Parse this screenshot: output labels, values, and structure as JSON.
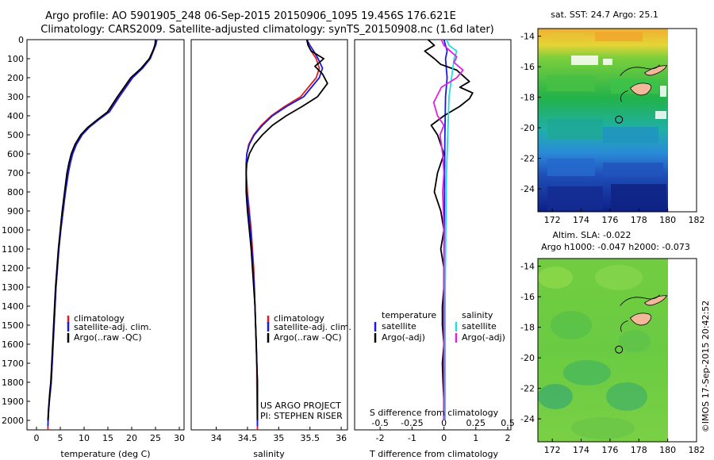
{
  "header": {
    "line1": "Argo profile: AO 5901905_248 06-Sep-2015 20150906_1095 19.456S 176.621E",
    "line2": "Climatology: CARS2009. Satellite-adjusted climatology: synTS_20150908.nc (1.6d later)"
  },
  "colors": {
    "climatology": "#e0201b",
    "satellite": "#1a1ae6",
    "argo": "#000000",
    "satellite_s": "#22dddd",
    "argo_s": "#dd22dd"
  },
  "chart_data": [
    {
      "type": "line",
      "xlabel": "temperature (deg C)",
      "ylabel": "",
      "xlim": [
        -2,
        31
      ],
      "ylim": [
        2050,
        0
      ],
      "xticks": [
        0,
        5,
        10,
        15,
        20,
        25,
        30
      ],
      "yticks": [
        0,
        100,
        200,
        300,
        400,
        500,
        600,
        700,
        800,
        900,
        1000,
        1100,
        1200,
        1300,
        1400,
        1500,
        1600,
        1700,
        1800,
        1900,
        2000
      ],
      "legend": [
        "climatology",
        "satellite-adj. clim.",
        "Argo(..raw -QC)"
      ],
      "series": [
        {
          "name": "climatology",
          "color": "#e0201b",
          "x": [
            25.2,
            25.0,
            24.6,
            23.8,
            22.2,
            20.0,
            17.3,
            15.2,
            13.0,
            11.0,
            9.5,
            8.3,
            7.5,
            7.0,
            6.6,
            6.0,
            5.6,
            5.1,
            4.7,
            4.4,
            4.1,
            3.9,
            3.7,
            3.5,
            3.3,
            3.1,
            2.9,
            2.7,
            2.55,
            2.45,
            2.4,
            2.4
          ],
          "y": [
            0,
            25,
            50,
            100,
            150,
            200,
            300,
            380,
            420,
            460,
            500,
            550,
            600,
            650,
            700,
            800,
            900,
            1000,
            1100,
            1200,
            1300,
            1400,
            1500,
            1600,
            1700,
            1800,
            1850,
            1900,
            1950,
            2000,
            2030,
            2050
          ]
        },
        {
          "name": "satellite-adj. clim.",
          "color": "#1a1ae6",
          "x": [
            25.3,
            25.1,
            24.7,
            23.9,
            22.3,
            20.2,
            17.4,
            15.3,
            13.1,
            11.1,
            9.6,
            8.4,
            7.6,
            7.1,
            6.7,
            6.1,
            5.6,
            5.1,
            4.7,
            4.4,
            4.1,
            3.9,
            3.7,
            3.5,
            3.3,
            3.1,
            2.9,
            2.7,
            2.55,
            2.45,
            2.4
          ],
          "y": [
            0,
            25,
            50,
            100,
            150,
            200,
            300,
            380,
            420,
            460,
            500,
            550,
            600,
            650,
            700,
            800,
            900,
            1000,
            1100,
            1200,
            1300,
            1400,
            1500,
            1600,
            1700,
            1800,
            1850,
            1900,
            1950,
            2000,
            2030
          ]
        },
        {
          "name": "Argo(..raw -QC)",
          "color": "#000000",
          "x": [
            25.0,
            24.9,
            24.6,
            23.7,
            22.0,
            19.8,
            17.0,
            14.9,
            12.8,
            10.8,
            9.3,
            8.1,
            7.3,
            6.8,
            6.4,
            5.9,
            5.4,
            5.0,
            4.6,
            4.3,
            4.0,
            3.8,
            3.6,
            3.4,
            3.2,
            3.0,
            2.8,
            2.65,
            2.5,
            2.4
          ],
          "y": [
            0,
            25,
            50,
            100,
            150,
            200,
            300,
            380,
            420,
            460,
            500,
            550,
            600,
            650,
            700,
            800,
            900,
            1000,
            1100,
            1200,
            1300,
            1400,
            1500,
            1600,
            1700,
            1800,
            1850,
            1900,
            1950,
            2000
          ]
        }
      ]
    },
    {
      "type": "line",
      "xlabel": "salinity",
      "ylabel": "",
      "xlim": [
        33.6,
        36.1
      ],
      "ylim": [
        2050,
        0
      ],
      "xticks": [
        34,
        34.5,
        35,
        35.5,
        36
      ],
      "yticks": [],
      "legend": [
        "climatology",
        "satellite-adj. clim.",
        "Argo(..raw -QC)"
      ],
      "annotations": [
        "US ARGO PROJECT",
        "PI: STEPHEN RISER"
      ],
      "series": [
        {
          "name": "climatology",
          "color": "#e0201b",
          "x": [
            35.45,
            35.47,
            35.52,
            35.6,
            35.65,
            35.6,
            35.35,
            35.1,
            34.88,
            34.72,
            34.6,
            34.52,
            34.49,
            34.48,
            34.48,
            34.5,
            34.53,
            34.56,
            34.58,
            34.6,
            34.61,
            34.62,
            34.63,
            34.64,
            34.65,
            34.65,
            34.66
          ],
          "y": [
            0,
            30,
            60,
            100,
            150,
            200,
            300,
            350,
            400,
            450,
            500,
            550,
            600,
            650,
            700,
            800,
            900,
            1000,
            1100,
            1200,
            1300,
            1400,
            1500,
            1600,
            1700,
            1800,
            2050
          ]
        },
        {
          "name": "satellite-adj. clim.",
          "color": "#1a1ae6",
          "x": [
            35.45,
            35.5,
            35.56,
            35.63,
            35.7,
            35.65,
            35.4,
            35.13,
            34.9,
            34.74,
            34.61,
            34.53,
            34.49,
            34.48,
            34.48,
            34.49,
            34.52,
            34.55,
            34.57,
            34.59,
            34.61,
            34.62,
            34.63,
            34.64,
            34.65,
            34.66,
            34.66
          ],
          "y": [
            0,
            30,
            60,
            100,
            150,
            200,
            300,
            350,
            400,
            450,
            500,
            550,
            600,
            650,
            700,
            800,
            900,
            1000,
            1100,
            1200,
            1300,
            1400,
            1500,
            1600,
            1700,
            1800,
            2030
          ]
        },
        {
          "name": "Argo(..raw -QC)",
          "color": "#000000",
          "x": [
            35.45,
            35.47,
            35.52,
            35.72,
            35.58,
            35.7,
            35.78,
            35.62,
            35.38,
            35.12,
            34.9,
            34.74,
            34.61,
            34.53,
            34.49,
            34.48,
            34.48,
            34.5,
            34.53,
            34.56,
            34.58,
            34.6,
            34.62,
            34.63,
            34.64,
            34.65,
            34.66,
            34.66
          ],
          "y": [
            0,
            30,
            60,
            100,
            140,
            180,
            230,
            300,
            350,
            400,
            450,
            500,
            550,
            600,
            650,
            700,
            800,
            900,
            1000,
            1100,
            1200,
            1300,
            1400,
            1500,
            1600,
            1700,
            1800,
            2000
          ]
        }
      ]
    },
    {
      "type": "line",
      "xlabel": "T difference from climatology",
      "xlabel2": "S difference from climatology",
      "xlim": [
        -2.8,
        2.1
      ],
      "xlim_s": [
        -0.7,
        0.525
      ],
      "ylim": [
        2050,
        0
      ],
      "xticks": [
        -2,
        -1,
        0,
        1,
        2
      ],
      "xticks_s": [
        -0.5,
        -0.25,
        0,
        0.25,
        0.5
      ],
      "xticks_s_labels": [
        "-0.5",
        "-0.25",
        "0",
        "0.25",
        "0.5"
      ],
      "legend_headers": [
        "temperature",
        "salinity"
      ],
      "legend": [
        "satellite",
        "Argo(-adj)",
        "satellite",
        "Argo(-adj)"
      ],
      "series": [
        {
          "name": "satellite",
          "axis": "T",
          "color": "#1a1ae6",
          "x": [
            0.0,
            0.05,
            0.1,
            0.05,
            0.1,
            0.05,
            0.03,
            0.02,
            0.01,
            0.0,
            0.0,
            0.0
          ],
          "y": [
            0,
            30,
            60,
            100,
            200,
            300,
            500,
            700,
            1000,
            1300,
            1700,
            2000
          ]
        },
        {
          "name": "Argo(-adj)",
          "axis": "T",
          "color": "#000000",
          "x": [
            -0.5,
            -0.3,
            -0.6,
            -0.3,
            -0.1,
            0.4,
            0.6,
            0.8,
            0.5,
            0.9,
            0.8,
            0.5,
            0.0,
            -0.4,
            -0.2,
            -0.1,
            0.0,
            -0.1,
            -0.2,
            -0.3,
            -0.1,
            0.0,
            -0.1,
            0.0,
            0.0,
            -0.05,
            -0.05,
            0.0,
            -0.05,
            -0.03,
            0.0,
            0.0
          ],
          "y": [
            0,
            30,
            60,
            100,
            130,
            160,
            190,
            220,
            250,
            280,
            310,
            350,
            400,
            450,
            500,
            550,
            600,
            650,
            700,
            800,
            900,
            1000,
            1100,
            1200,
            1300,
            1400,
            1500,
            1600,
            1700,
            1800,
            1900,
            2000
          ]
        },
        {
          "name": "satellite",
          "axis": "S",
          "color": "#22dddd",
          "x": [
            0.02,
            0.04,
            0.1,
            0.08,
            0.06,
            0.04,
            0.03,
            0.02,
            0.015,
            0.01,
            0.01,
            0.01
          ],
          "y": [
            0,
            30,
            60,
            100,
            200,
            300,
            500,
            700,
            1000,
            1300,
            1700,
            2000
          ]
        },
        {
          "name": "Argo(-adj)",
          "axis": "S",
          "color": "#dd22dd",
          "x": [
            -0.02,
            0.0,
            0.05,
            0.1,
            0.08,
            0.15,
            0.1,
            -0.02,
            -0.08,
            -0.05,
            0.0,
            -0.03,
            -0.01,
            0.0,
            -0.01,
            0.0,
            0.0,
            0.0,
            0.0,
            0.0
          ],
          "y": [
            0,
            30,
            60,
            90,
            120,
            160,
            200,
            250,
            330,
            400,
            450,
            500,
            600,
            700,
            800,
            1000,
            1200,
            1500,
            1800,
            2000
          ]
        }
      ]
    },
    {
      "type": "heatmap",
      "title": "sat. SST: 24.7  Argo: 25.1",
      "xlim": [
        171,
        182
      ],
      "ylim": [
        -25.5,
        -13.5
      ],
      "xticks": [
        172,
        174,
        176,
        178,
        180,
        182
      ],
      "yticks": [
        -14,
        -16,
        -18,
        -20,
        -22,
        -24
      ],
      "marker": {
        "lon": 176.62,
        "lat": -19.46
      }
    },
    {
      "type": "heatmap",
      "title": "Altim. SLA: -0.022",
      "subtitle": "Argo h1000: -0.047 h2000: -0.073",
      "xlim": [
        171,
        182
      ],
      "ylim": [
        -25.5,
        -13.5
      ],
      "xticks": [
        172,
        174,
        176,
        178,
        180,
        182
      ],
      "yticks": [
        -14,
        -16,
        -18,
        -20,
        -22,
        -24
      ],
      "marker": {
        "lon": 176.62,
        "lat": -19.46
      }
    }
  ],
  "footer": {
    "credit": "©IMOS 17-Sep-2015 20:42:52"
  }
}
